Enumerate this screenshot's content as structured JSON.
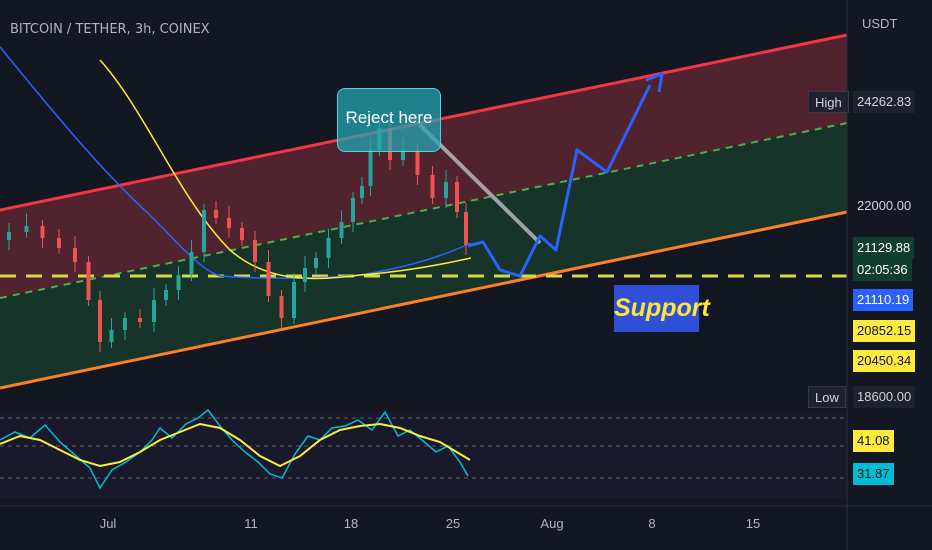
{
  "header": {
    "symbol": "BITCOIN / TETHER, 3h, COINEX",
    "currency": "USDT"
  },
  "annotations": {
    "reject": "Reject here",
    "support": "Support"
  },
  "price_labels": [
    {
      "text": "24262.83",
      "bg": "#1e222d",
      "color": "#d1d4dc"
    },
    {
      "text": "22000.00",
      "bg": "transparent",
      "color": "#d1d4dc"
    },
    {
      "text": "21129.88",
      "bg": "#0f3d2e",
      "color": "#ffffff"
    },
    {
      "text": "02:05:36",
      "bg": "#0f3d2e",
      "color": "#ffffff"
    },
    {
      "text": "21110.19",
      "bg": "#2962ff",
      "color": "#ffffff"
    },
    {
      "text": "20852.15",
      "bg": "#ffeb3b",
      "color": "#131722"
    },
    {
      "text": "20450.34",
      "bg": "#ffeb3b",
      "color": "#131722"
    },
    {
      "text": "18600.00",
      "bg": "#1e222d",
      "color": "#d1d4dc"
    },
    {
      "text": "41.08",
      "bg": "#ffeb3b",
      "color": "#131722"
    },
    {
      "text": "31.87",
      "bg": "#00bcd4",
      "color": "#131722"
    }
  ],
  "tags": {
    "high": "High",
    "low": "Low"
  },
  "chart_data": {
    "type": "line",
    "title": "BITCOIN / TETHER, 3h, COINEX",
    "xlabel": "",
    "ylabel": "USDT",
    "x_ticks": [
      "Jul",
      "11",
      "18",
      "25",
      "Aug",
      "8",
      "15"
    ],
    "y_ticks": [
      22000.0
    ],
    "ylim": [
      18600,
      24800
    ],
    "series": [
      {
        "name": "",
        "color": "#f23645",
        "start": {
          "date": "2022-06-25",
          "price": 22000
        },
        "end": {
          "date": "2022-08-22",
          "price": 24800
        }
      },
      {
        "name": "",
        "color": "#4caf50",
        "start": {
          "date": "2022-06-25",
          "price": 20300
        },
        "end": {
          "date": "2022-08-22",
          "price": 23100
        }
      },
      {
        "name": "",
        "color": "#ff7f27",
        "start": {
          "date": "2022-06-25",
          "price": 18600
        },
        "end": {
          "date": "2022-08-22",
          "price": 21600
        }
      },
      {
        "name": "",
        "color": "#d9d74a",
        "values": [
          20450.34
        ],
        "style": "dashed"
      }
    ],
    "projection": [
      21129.88,
      20600,
      20450.34,
      21300,
      20900,
      22700,
      22400,
      24262.83
    ],
    "oscillator": {
      "levels": [
        70,
        50,
        30
      ],
      "values": [
        41.08,
        31.87
      ],
      "colors": {
        "fast": "#00bcd4",
        "slow": "#ffeb3b"
      }
    },
    "legend_position": "none",
    "grid": false,
    "reject_text": "Reject here",
    "support_text": "Support"
  }
}
